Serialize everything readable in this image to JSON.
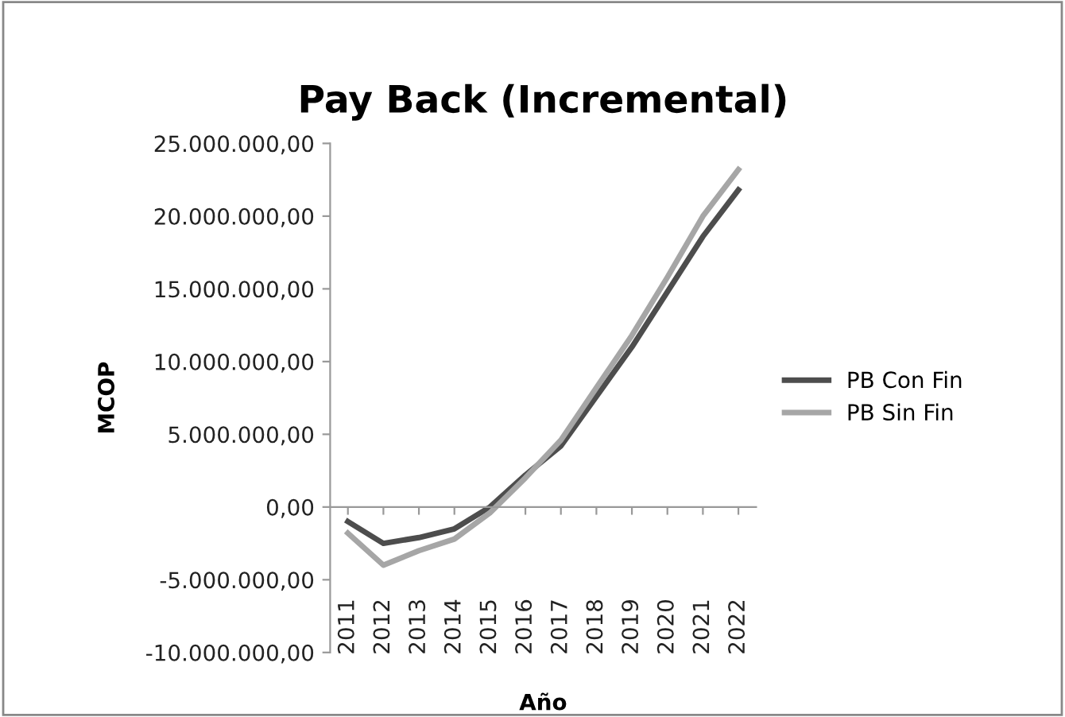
{
  "chart_data": {
    "type": "line",
    "title": "Pay Back (Incremental)",
    "xlabel": "Año",
    "ylabel": "MCOP",
    "categories": [
      "2011",
      "2012",
      "2013",
      "2014",
      "2015",
      "2016",
      "2017",
      "2018",
      "2019",
      "2020",
      "2021",
      "2022"
    ],
    "series": [
      {
        "name": "PB Con Fin",
        "color": "#4d4d4d",
        "values": [
          -1000000,
          -2500000,
          -2100000,
          -1500000,
          0,
          2200000,
          4200000,
          7600000,
          11000000,
          14800000,
          18600000,
          21800000
        ]
      },
      {
        "name": "PB Sin Fin",
        "color": "#a6a6a6",
        "values": [
          -1800000,
          -4000000,
          -3000000,
          -2200000,
          -400000,
          2000000,
          4600000,
          8200000,
          11800000,
          15800000,
          20000000,
          23200000
        ]
      }
    ],
    "ylim": [
      -10000000,
      25000000
    ],
    "yticks": [
      {
        "value": -10000000,
        "label": "-10.000.000,00"
      },
      {
        "value": -5000000,
        "label": "-5.000.000,00"
      },
      {
        "value": 0,
        "label": "0,00"
      },
      {
        "value": 5000000,
        "label": "5.000.000,00"
      },
      {
        "value": 10000000,
        "label": "10.000.000,00"
      },
      {
        "value": 15000000,
        "label": "15.000.000,00"
      },
      {
        "value": 20000000,
        "label": "20.000.000,00"
      },
      {
        "value": 25000000,
        "label": "25.000.000,00"
      }
    ],
    "legend": "right",
    "marker": "none",
    "line_style": "solid"
  }
}
